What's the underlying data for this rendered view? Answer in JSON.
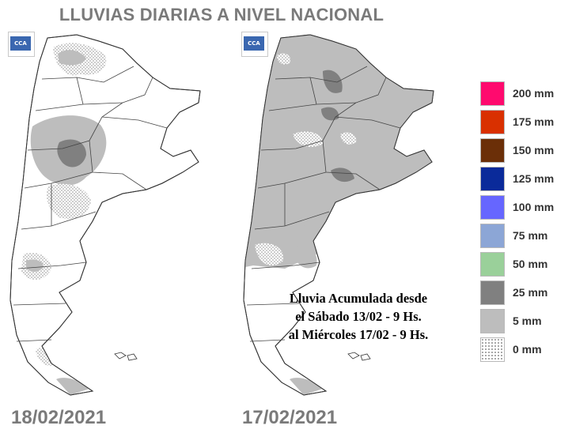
{
  "title": "LLUVIAS DIARIAS A NIVEL NACIONAL",
  "maps": [
    {
      "date": "18/02/2021",
      "logo_text": "CCA"
    },
    {
      "date": "17/02/2021",
      "logo_text": "CCA"
    }
  ],
  "caption": {
    "line1": "Lluvia Acumulada desde",
    "line2": "el Sábado 13/02 - 9 Hs.",
    "line3": "al Miércoles 17/02 - 9 Hs."
  },
  "legend": [
    {
      "label": "200 mm",
      "color": "#ff0a6e"
    },
    {
      "label": "175 mm",
      "color": "#d93000"
    },
    {
      "label": "150 mm",
      "color": "#6b2f08"
    },
    {
      "label": "125 mm",
      "color": "#0a2a9a"
    },
    {
      "label": "100 mm",
      "color": "#6666ff"
    },
    {
      "label": "75 mm",
      "color": "#8ca6d6"
    },
    {
      "label": "50 mm",
      "color": "#9ad09a"
    },
    {
      "label": "25 mm",
      "color": "#808080"
    },
    {
      "label": "5 mm",
      "color": "#bdbdbd"
    },
    {
      "label": "0 mm",
      "color": "dotted"
    }
  ]
}
